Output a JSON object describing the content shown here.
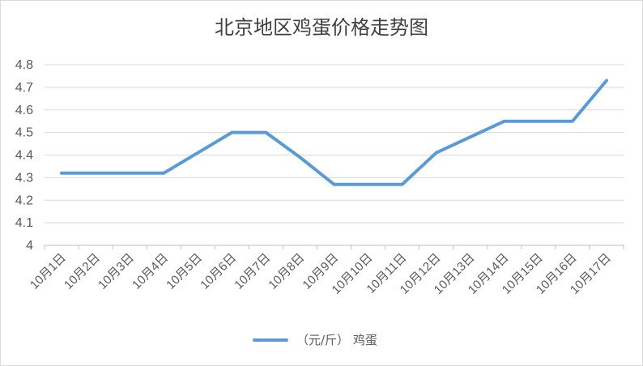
{
  "chart_data": {
    "type": "line",
    "title": "北京地区鸡蛋价格走势图",
    "categories": [
      "10月1日",
      "10月2日",
      "10月3日",
      "10月4日",
      "10月5日",
      "10月6日",
      "10月7日",
      "10月8日",
      "10月9日",
      "10月10日",
      "10月11日",
      "10月12日",
      "10月13日",
      "10月14日",
      "10月15日",
      "10月16日",
      "10月17日"
    ],
    "series": [
      {
        "name": "（元/斤） 鸡蛋",
        "values": [
          4.32,
          4.32,
          4.32,
          4.32,
          4.41,
          4.5,
          4.5,
          4.39,
          4.27,
          4.27,
          4.27,
          4.41,
          4.48,
          4.55,
          4.55,
          4.55,
          4.73
        ]
      }
    ],
    "ylim": [
      4,
      4.8
    ],
    "yticks": [
      "4",
      "4.1",
      "4.2",
      "4.3",
      "4.4",
      "4.5",
      "4.6",
      "4.7",
      "4.8"
    ],
    "grid": true,
    "legend": "bottom",
    "color": "#5b9bd5"
  }
}
